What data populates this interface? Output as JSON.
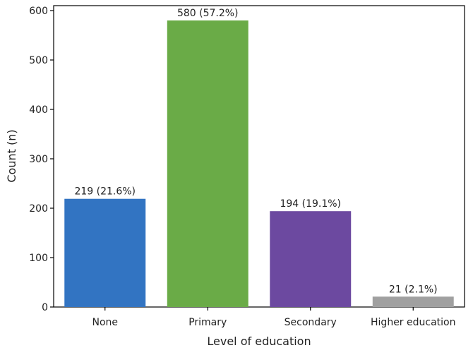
{
  "chart_data": {
    "type": "bar",
    "xlabel": "Level of education",
    "ylabel": "Count (n)",
    "categories": [
      "None",
      "Primary",
      "Secondary",
      "Higher education"
    ],
    "values": [
      219,
      580,
      194,
      21
    ],
    "data_labels": [
      "219 (21.6%)",
      "580 (57.2%)",
      "194 (19.1%)",
      "21 (2.1%)"
    ],
    "colors": [
      "#3274c2",
      "#6aab47",
      "#6c49a0",
      "#a0a0a0"
    ],
    "ylim": [
      0,
      610
    ],
    "yticks": [
      0,
      100,
      200,
      300,
      400,
      500,
      600
    ],
    "grid": false,
    "legend": "none"
  }
}
